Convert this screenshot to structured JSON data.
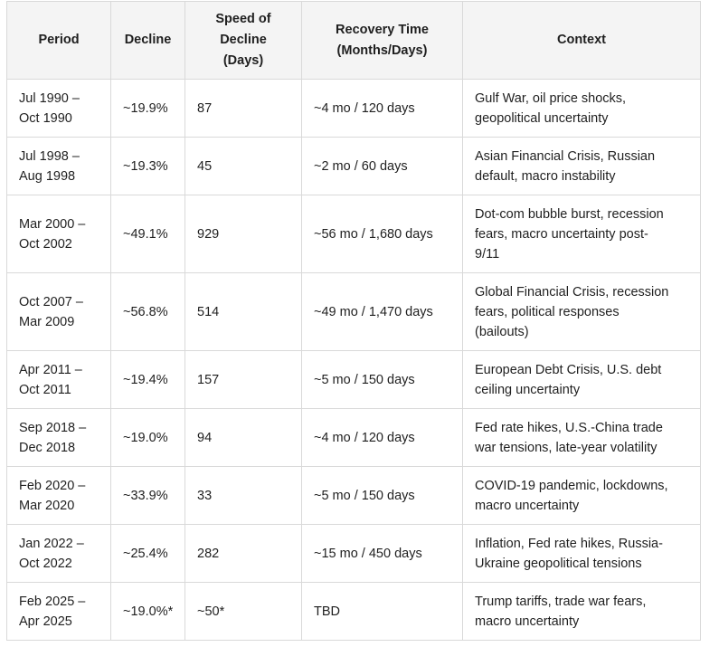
{
  "headers": {
    "period": "Period",
    "decline": "Decline",
    "speed_line1": "Speed of",
    "speed_line2": "Decline",
    "speed_line3": "(Days)",
    "recovery_line1": "Recovery Time",
    "recovery_line2": "(Months/Days)",
    "context": "Context"
  },
  "rows": [
    {
      "period_start": "Jul 1990 –",
      "period_end": "Oct 1990",
      "decline": "~19.9%",
      "speed": "87",
      "recovery": "~4 mo / 120 days",
      "context_lines": [
        "Gulf War, oil price shocks,",
        "geopolitical uncertainty"
      ]
    },
    {
      "period_start": "Jul 1998 –",
      "period_end": "Aug 1998",
      "decline": "~19.3%",
      "speed": "45",
      "recovery": "~2 mo / 60 days",
      "context_lines": [
        "Asian Financial Crisis, Russian",
        "default, macro instability"
      ]
    },
    {
      "period_start": "Mar 2000 –",
      "period_end": "Oct 2002",
      "decline": "~49.1%",
      "speed": "929",
      "recovery": "~56 mo / 1,680 days",
      "context_lines": [
        "Dot-com bubble burst, recession",
        "fears, macro uncertainty post-",
        "9/11"
      ]
    },
    {
      "period_start": "Oct 2007 –",
      "period_end": "Mar 2009",
      "decline": "~56.8%",
      "speed": "514",
      "recovery": "~49 mo / 1,470 days",
      "context_lines": [
        "Global Financial Crisis, recession",
        "fears, political responses",
        "(bailouts)"
      ]
    },
    {
      "period_start": "Apr 2011 –",
      "period_end": "Oct 2011",
      "decline": "~19.4%",
      "speed": "157",
      "recovery": "~5 mo / 150 days",
      "context_lines": [
        "European Debt Crisis, U.S. debt",
        "ceiling uncertainty"
      ]
    },
    {
      "period_start": "Sep 2018 –",
      "period_end": "Dec 2018",
      "decline": "~19.0%",
      "speed": "94",
      "recovery": "~4 mo / 120 days",
      "context_lines": [
        "Fed rate hikes, U.S.-China trade",
        "war tensions, late-year volatility"
      ]
    },
    {
      "period_start": "Feb 2020 –",
      "period_end": "Mar 2020",
      "decline": "~33.9%",
      "speed": "33",
      "recovery": "~5 mo / 150 days",
      "context_lines": [
        "COVID-19 pandemic, lockdowns,",
        "macro uncertainty"
      ]
    },
    {
      "period_start": "Jan 2022 –",
      "period_end": "Oct 2022",
      "decline": "~25.4%",
      "speed": "282",
      "recovery": "~15 mo / 450 days",
      "context_lines": [
        "Inflation, Fed rate hikes, Russia-",
        "Ukraine geopolitical tensions"
      ]
    },
    {
      "period_start": "Feb 2025 –",
      "period_end": "Apr 2025",
      "decline": "~19.0%*",
      "speed": "~50*",
      "recovery": "TBD",
      "context_lines": [
        "Trump tariffs, trade war fears,",
        "macro uncertainty"
      ]
    }
  ]
}
